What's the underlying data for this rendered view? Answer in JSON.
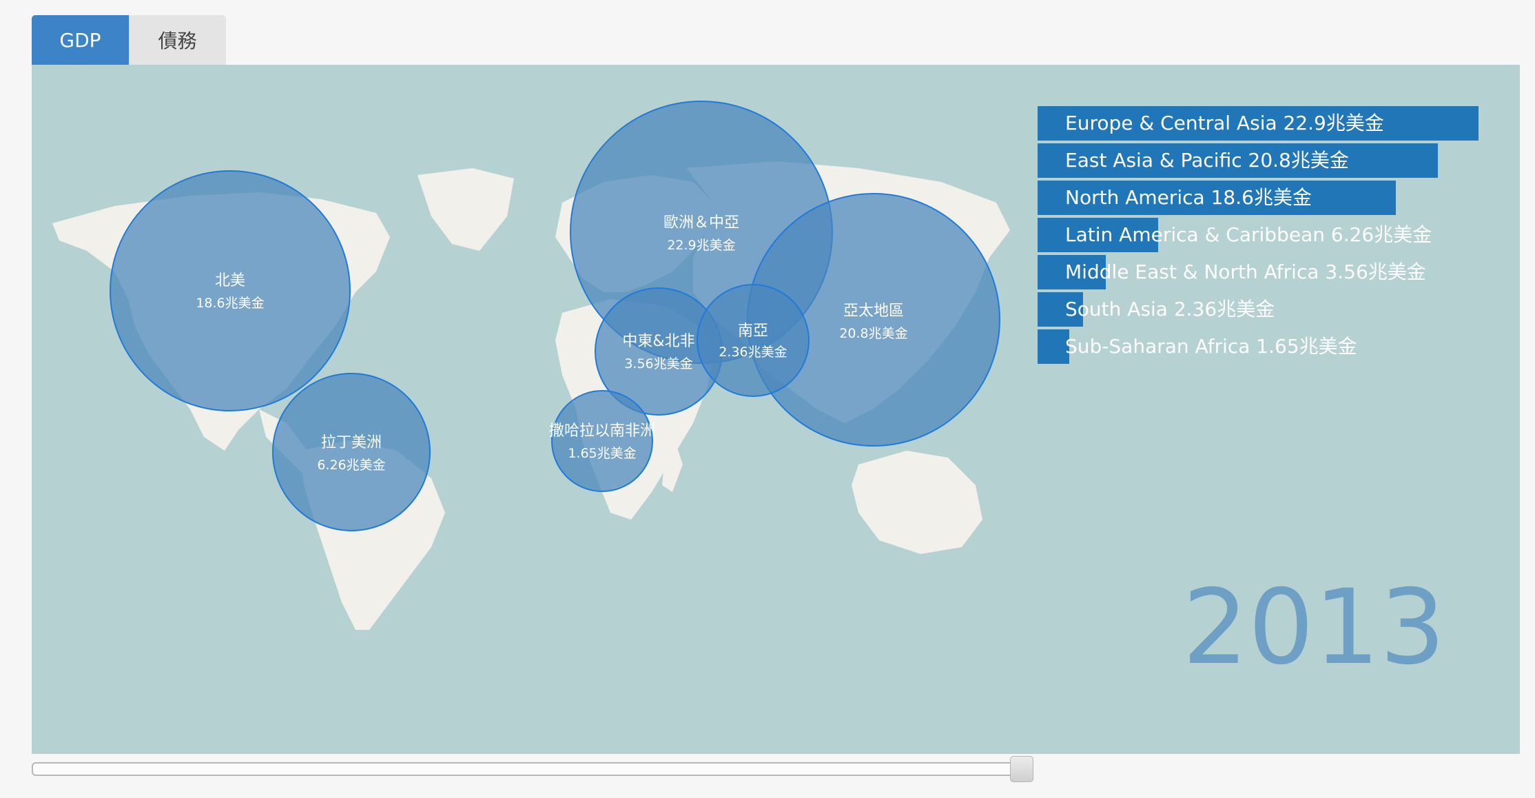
{
  "tabs": [
    {
      "label": "GDP",
      "active": true
    },
    {
      "label": "債務",
      "active": false
    }
  ],
  "bubbles": [
    {
      "name": "北美",
      "value": "18.6兆美金"
    },
    {
      "name": "拉丁美洲",
      "value": "6.26兆美金"
    },
    {
      "name": "歐洲＆中亞",
      "value": "22.9兆美金"
    },
    {
      "name": "中東&北非",
      "value": "3.56兆美金"
    },
    {
      "name": "南亞",
      "value": "2.36兆美金"
    },
    {
      "name": "亞太地區",
      "value": "20.8兆美金"
    },
    {
      "name": "撒哈拉以南非洲",
      "value": "1.65兆美金"
    }
  ],
  "chart_data": {
    "type": "bar",
    "categories": [
      "Europe & Central Asia",
      "East Asia & Pacific",
      "North America",
      "Latin America & Caribbean",
      "Middle East & North Africa",
      "South Asia",
      "Sub-Saharan Africa"
    ],
    "values": [
      22.9,
      20.8,
      18.6,
      6.26,
      3.56,
      2.36,
      1.65
    ],
    "labels": [
      "Europe & Central Asia 22.9兆美金",
      "East Asia & Pacific 20.8兆美金",
      "North America 18.6兆美金",
      "Latin America & Caribbean 6.26兆美金",
      "Middle East & North Africa 3.56兆美金",
      "South Asia 2.36兆美金",
      "Sub-Saharan Africa 1.65兆美金"
    ],
    "unit": "兆美金"
  },
  "year": "2013",
  "colors": {
    "bubble_fill": "#4a86bd",
    "bubble_stroke": "#1f7ad9",
    "bar": "#2176b8",
    "ocean": "#b6d1d1",
    "land": "#f2f0ea",
    "year_text": "#6e9fc4"
  }
}
